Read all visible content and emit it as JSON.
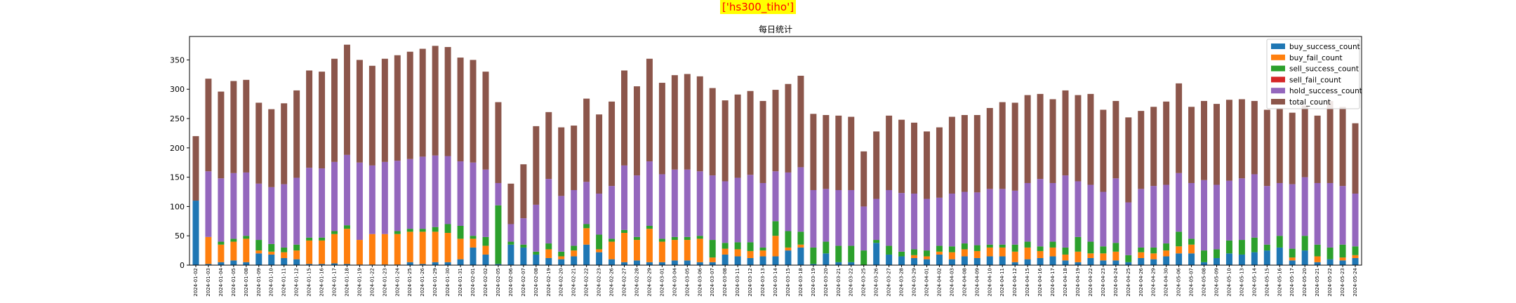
{
  "suptitle": "['hs300_tiho']",
  "chart_data": {
    "type": "bar",
    "stacked": true,
    "title": "每日统计",
    "xlabel": "",
    "ylabel": "",
    "ylim": [
      0,
      390
    ],
    "yticks": [
      0,
      50,
      100,
      150,
      200,
      250,
      300,
      350
    ],
    "legend": "top-right",
    "grid": false,
    "categories": [
      "2024-01-02",
      "2024-01-03",
      "2024-01-04",
      "2024-01-05",
      "2024-01-08",
      "2024-01-09",
      "2024-01-10",
      "2024-01-11",
      "2024-01-12",
      "2024-01-15",
      "2024-01-16",
      "2024-01-17",
      "2024-01-18",
      "2024-01-19",
      "2024-01-22",
      "2024-01-23",
      "2024-01-24",
      "2024-01-25",
      "2024-01-26",
      "2024-01-29",
      "2024-01-30",
      "2024-01-31",
      "2024-02-01",
      "2024-02-02",
      "2024-02-05",
      "2024-02-06",
      "2024-02-07",
      "2024-02-08",
      "2024-02-19",
      "2024-02-20",
      "2024-02-21",
      "2024-02-22",
      "2024-02-23",
      "2024-02-26",
      "2024-02-27",
      "2024-02-28",
      "2024-02-29",
      "2024-03-01",
      "2024-03-04",
      "2024-03-05",
      "2024-03-06",
      "2024-03-07",
      "2024-03-08",
      "2024-03-11",
      "2024-03-12",
      "2024-03-13",
      "2024-03-14",
      "2024-03-15",
      "2024-03-18",
      "2024-03-19",
      "2024-03-20",
      "2024-03-21",
      "2024-03-22",
      "2024-03-25",
      "2024-03-26",
      "2024-03-27",
      "2024-03-28",
      "2024-03-29",
      "2024-04-01",
      "2024-04-02",
      "2024-04-03",
      "2024-04-08",
      "2024-04-09",
      "2024-04-10",
      "2024-04-11",
      "2024-04-12",
      "2024-04-15",
      "2024-04-16",
      "2024-04-17",
      "2024-04-18",
      "2024-04-19",
      "2024-04-22",
      "2024-04-23",
      "2024-04-24",
      "2024-04-25",
      "2024-04-26",
      "2024-04-29",
      "2024-04-30",
      "2024-05-06",
      "2024-05-07",
      "2024-05-08",
      "2024-05-09",
      "2024-05-10",
      "2024-05-13",
      "2024-05-14",
      "2024-05-15",
      "2024-05-16",
      "2024-05-17",
      "2024-05-20",
      "2024-05-21",
      "2024-05-22",
      "2024-05-23",
      "2024-05-24"
    ],
    "series": [
      {
        "name": "buy_success_count",
        "color": "#1f77b4",
        "values": [
          110,
          2,
          5,
          8,
          5,
          20,
          18,
          12,
          10,
          2,
          2,
          3,
          2,
          1,
          1,
          1,
          1,
          5,
          2,
          5,
          5,
          10,
          30,
          18,
          2,
          35,
          30,
          18,
          12,
          10,
          15,
          35,
          22,
          10,
          5,
          8,
          5,
          5,
          8,
          8,
          5,
          5,
          18,
          15,
          12,
          15,
          15,
          25,
          30,
          2,
          20,
          5,
          5,
          0,
          38,
          18,
          15,
          12,
          10,
          18,
          10,
          15,
          12,
          15,
          15,
          5,
          10,
          12,
          15,
          8,
          5,
          12,
          8,
          8,
          5,
          12,
          10,
          15,
          20,
          20,
          5,
          12,
          20,
          18,
          22,
          25,
          30,
          8,
          25,
          5,
          10,
          8,
          12
        ]
      },
      {
        "name": "buy_fail_count",
        "color": "#ff7f0e",
        "values": [
          0,
          46,
          30,
          32,
          40,
          5,
          5,
          10,
          15,
          40,
          40,
          50,
          60,
          42,
          52,
          52,
          52,
          52,
          55,
          52,
          50,
          35,
          15,
          15,
          0,
          0,
          0,
          0,
          15,
          5,
          10,
          28,
          5,
          30,
          50,
          35,
          57,
          35,
          35,
          35,
          40,
          8,
          10,
          12,
          12,
          10,
          35,
          5,
          5,
          0,
          0,
          0,
          0,
          0,
          0,
          0,
          0,
          5,
          5,
          5,
          12,
          12,
          12,
          15,
          15,
          18,
          20,
          12,
          15,
          10,
          18,
          8,
          12,
          15,
          0,
          10,
          10,
          10,
          12,
          15,
          0,
          0,
          0,
          0,
          0,
          0,
          0,
          5,
          0,
          10,
          0,
          5,
          5
        ]
      },
      {
        "name": "sell_success_count",
        "color": "#2ca02c",
        "values": [
          0,
          0,
          5,
          5,
          5,
          18,
          13,
          8,
          10,
          5,
          5,
          5,
          6,
          0,
          0,
          0,
          5,
          5,
          5,
          8,
          15,
          22,
          5,
          15,
          100,
          5,
          5,
          5,
          10,
          8,
          8,
          7,
          25,
          5,
          5,
          5,
          5,
          5,
          5,
          5,
          5,
          30,
          10,
          12,
          15,
          5,
          25,
          28,
          22,
          28,
          20,
          28,
          28,
          25,
          5,
          15,
          8,
          10,
          10,
          10,
          10,
          10,
          10,
          5,
          5,
          12,
          10,
          8,
          10,
          12,
          25,
          20,
          12,
          15,
          12,
          8,
          10,
          12,
          25,
          10,
          20,
          15,
          22,
          25,
          25,
          10,
          20,
          15,
          25,
          20,
          20,
          22,
          15
        ]
      },
      {
        "name": "sell_fail_count",
        "color": "#d62728",
        "values": [
          0,
          0,
          0,
          0,
          0,
          0,
          0,
          0,
          0,
          0,
          0,
          0,
          0,
          0,
          0,
          0,
          0,
          0,
          0,
          0,
          0,
          0,
          0,
          0,
          0,
          0,
          0,
          0,
          0,
          0,
          0,
          0,
          0,
          0,
          0,
          0,
          0,
          0,
          0,
          0,
          0,
          0,
          0,
          0,
          0,
          0,
          0,
          0,
          0,
          0,
          0,
          0,
          0,
          0,
          0,
          0,
          0,
          0,
          0,
          0,
          0,
          0,
          0,
          0,
          0,
          0,
          0,
          0,
          0,
          0,
          0,
          0,
          0,
          0,
          0,
          0,
          0,
          0,
          0,
          0,
          0,
          0,
          0,
          0,
          0,
          0,
          0,
          0,
          0,
          0,
          0,
          0,
          0
        ]
      },
      {
        "name": "hold_success_count",
        "color": "#9467bd",
        "values": [
          0,
          112,
          108,
          112,
          108,
          96,
          97,
          108,
          114,
          119,
          118,
          118,
          120,
          132,
          117,
          123,
          120,
          119,
          123,
          122,
          116,
          110,
          125,
          115,
          38,
          30,
          45,
          80,
          110,
          95,
          95,
          72,
          70,
          90,
          110,
          105,
          110,
          110,
          115,
          115,
          110,
          110,
          105,
          110,
          115,
          110,
          85,
          100,
          110,
          98,
          90,
          95,
          95,
          75,
          70,
          95,
          100,
          95,
          88,
          82,
          90,
          88,
          90,
          95,
          95,
          92,
          100,
          115,
          100,
          123,
          95,
          97,
          93,
          110,
          90,
          100,
          105,
          100,
          100,
          95,
          120,
          110,
          102,
          105,
          108,
          100,
          90,
          110,
          100,
          105,
          110,
          100,
          90
        ]
      },
      {
        "name": "total_count",
        "color": "#8c564b",
        "values": [
          110,
          158,
          148,
          157,
          158,
          138,
          133,
          138,
          149,
          166,
          165,
          176,
          188,
          175,
          170,
          176,
          180,
          183,
          184,
          187,
          186,
          177,
          175,
          167,
          138,
          69,
          92,
          134,
          114,
          117,
          110,
          142,
          135,
          144,
          162,
          152,
          175,
          156,
          161,
          163,
          162,
          149,
          138,
          142,
          143,
          140,
          139,
          151,
          156,
          130,
          126,
          127,
          125,
          94,
          115,
          127,
          125,
          121,
          115,
          120,
          131,
          131,
          132,
          138,
          148,
          150,
          150,
          145,
          143,
          145,
          147,
          155,
          140,
          132,
          145,
          133,
          135,
          142,
          153,
          130,
          135,
          138,
          138,
          135,
          125,
          130,
          128,
          122,
          122,
          115,
          140,
          135,
          120
        ]
      }
    ]
  }
}
